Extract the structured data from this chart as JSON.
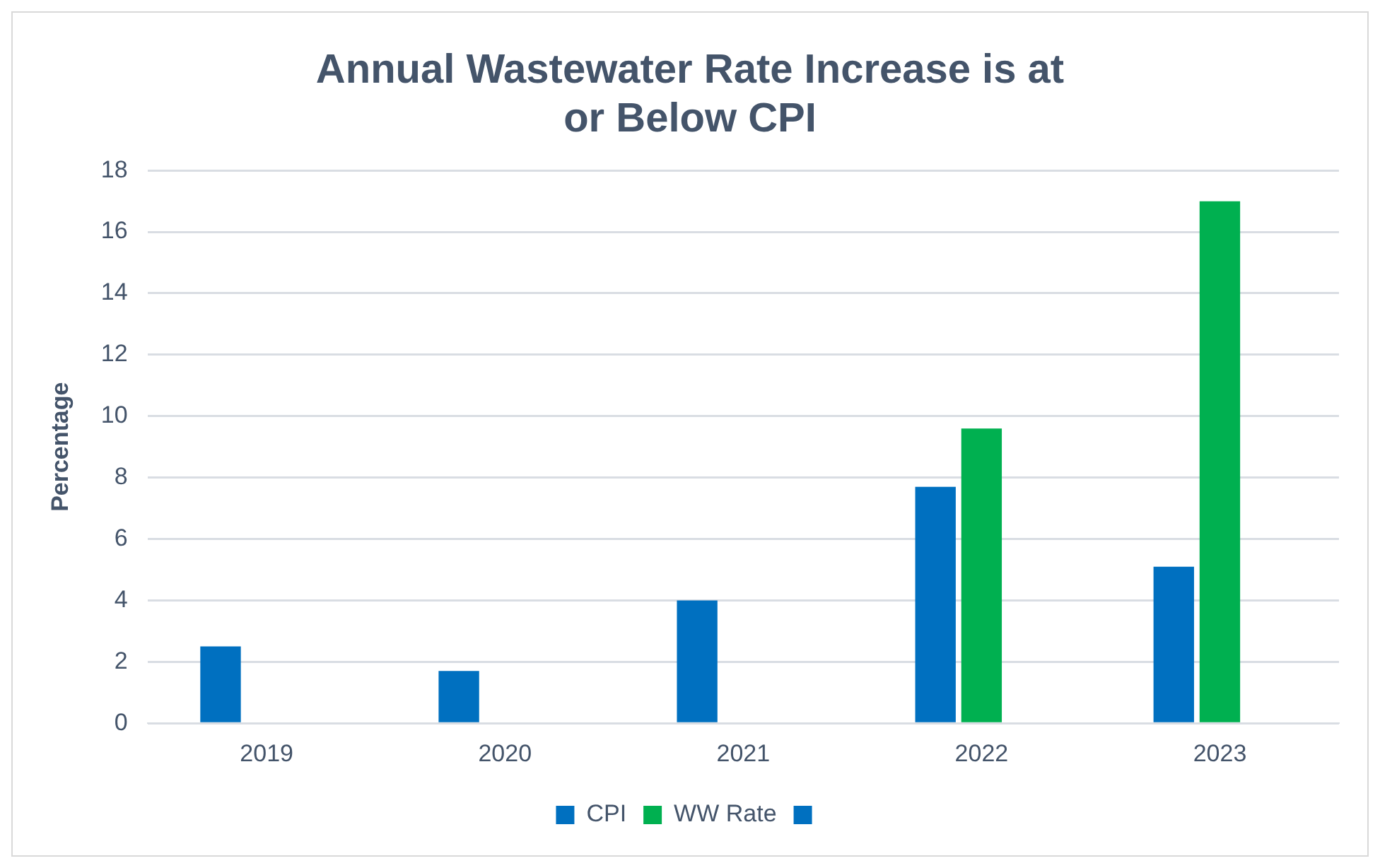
{
  "chart_data": {
    "type": "bar",
    "title": "Annual Wastewater Rate Increase is at or Below CPI",
    "ylabel": "Percentage",
    "categories": [
      "2019",
      "2020",
      "2021",
      "2022",
      "2023"
    ],
    "series": [
      {
        "name": "CPI",
        "color": "#0070c0",
        "values": [
          2.5,
          1.7,
          4.0,
          7.7,
          5.1
        ]
      },
      {
        "name": "WW Rate",
        "color": "#00b050",
        "values": [
          null,
          null,
          null,
          9.6,
          17.0
        ]
      },
      {
        "color": "#0070c0",
        "values": [
          null,
          null,
          null,
          null,
          null
        ]
      }
    ],
    "ylim": [
      0,
      18
    ],
    "yticks": [
      0,
      2,
      4,
      6,
      8,
      10,
      12,
      14,
      16,
      18
    ],
    "grid": "y",
    "legend": "bottom"
  }
}
